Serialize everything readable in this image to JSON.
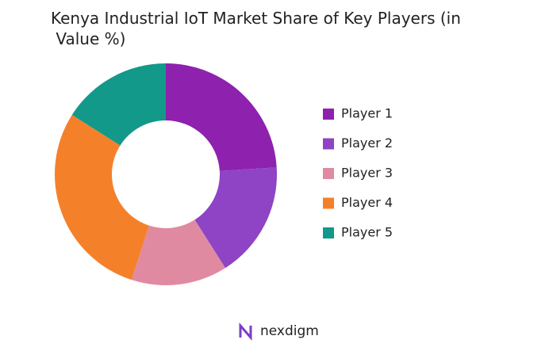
{
  "chart_data": {
    "type": "donut",
    "title": "Kenya Industrial IoT Market Share of Key Players (in Value %)",
    "categories": [
      "Player 1",
      "Player 2",
      "Player 3",
      "Player 4",
      "Player 5"
    ],
    "values": [
      24,
      17,
      14,
      29,
      16
    ],
    "colors": [
      "#8e21ad",
      "#8e44c4",
      "#e08aa2",
      "#f5802a",
      "#12998a"
    ],
    "legend": "right",
    "brand": "nexdigm"
  }
}
